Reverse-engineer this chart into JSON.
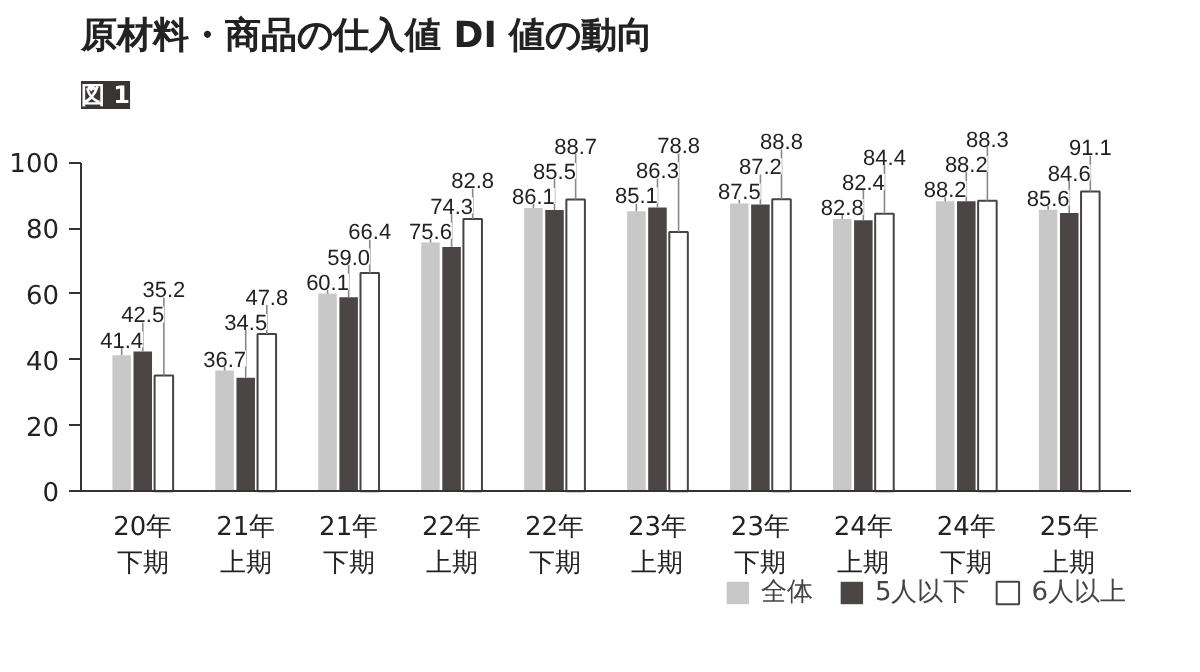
{
  "chart_data": {
    "type": "bar",
    "title": "原材料・商品の仕入値 DI 値の動向",
    "annotations": [
      "図 1"
    ],
    "categories": [
      "20年下期",
      "21年上期",
      "21年下期",
      "22年上期",
      "22年下期",
      "23年上期",
      "23年下期",
      "24年上期",
      "24年下期",
      "25年上期"
    ],
    "series": [
      {
        "name": "全体",
        "color": "#c8c8c8",
        "values": [
          41.4,
          36.7,
          60.1,
          75.6,
          86.1,
          85.1,
          87.5,
          82.8,
          88.2,
          85.6
        ],
        "value_labels": [
          "41.4",
          "36.7",
          "60.1",
          "75.6",
          "86.1",
          "85.1",
          "87.5",
          "82.8",
          "88.2",
          "85.6"
        ]
      },
      {
        "name": "5人以下",
        "color": "#4a4646",
        "values": [
          42.5,
          34.5,
          59.0,
          74.3,
          85.5,
          86.3,
          87.2,
          82.4,
          88.2,
          84.6
        ],
        "value_labels": [
          "42.5",
          "34.5",
          "59.0",
          "74.3",
          "85.5",
          "86.3",
          "87.2",
          "82.4",
          "88.2",
          "84.6"
        ]
      },
      {
        "name": "6人以上",
        "color": "#ffffff",
        "values": [
          35.2,
          47.8,
          66.4,
          82.8,
          88.7,
          78.8,
          88.8,
          84.4,
          88.3,
          91.1
        ],
        "value_labels": [
          "35.2",
          "47.8",
          "66.4",
          "82.8",
          "88.7",
          "78.8",
          "88.8",
          "84.4",
          "88.3",
          "91.1"
        ]
      }
    ],
    "ylim": [
      0,
      100
    ],
    "yticks": [
      0,
      20,
      40,
      60,
      80,
      100
    ],
    "legend": "bottom"
  }
}
